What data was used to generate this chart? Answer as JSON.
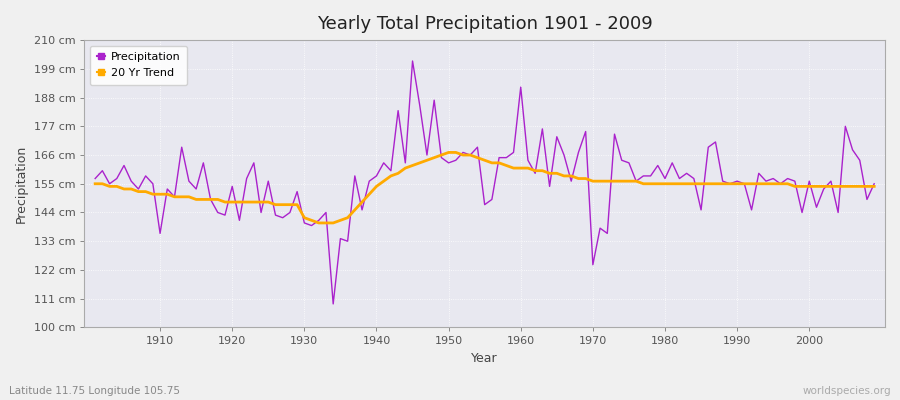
{
  "title": "Yearly Total Precipitation 1901 - 2009",
  "xlabel": "Year",
  "ylabel": "Precipitation",
  "subtitle_left": "Latitude 11.75 Longitude 105.75",
  "subtitle_right": "worldspecies.org",
  "fig_bg_color": "#f0f0f0",
  "plot_bg_color": "#e8e8f0",
  "line_color": "#aa22cc",
  "trend_color": "#ffaa00",
  "ylim": [
    100,
    210
  ],
  "yticks": [
    100,
    111,
    122,
    133,
    144,
    155,
    166,
    177,
    188,
    199,
    210
  ],
  "ytick_labels": [
    "100 cm",
    "111 cm",
    "122 cm",
    "133 cm",
    "144 cm",
    "155 cm",
    "166 cm",
    "177 cm",
    "188 cm",
    "199 cm",
    "210 cm"
  ],
  "xticks": [
    1910,
    1920,
    1930,
    1940,
    1950,
    1960,
    1970,
    1980,
    1990,
    2000
  ],
  "years": [
    1901,
    1902,
    1903,
    1904,
    1905,
    1906,
    1907,
    1908,
    1909,
    1910,
    1911,
    1912,
    1913,
    1914,
    1915,
    1916,
    1917,
    1918,
    1919,
    1920,
    1921,
    1922,
    1923,
    1924,
    1925,
    1926,
    1927,
    1928,
    1929,
    1930,
    1931,
    1932,
    1933,
    1934,
    1935,
    1936,
    1937,
    1938,
    1939,
    1940,
    1941,
    1942,
    1943,
    1944,
    1945,
    1946,
    1947,
    1948,
    1949,
    1950,
    1951,
    1952,
    1953,
    1954,
    1955,
    1956,
    1957,
    1958,
    1959,
    1960,
    1961,
    1962,
    1963,
    1964,
    1965,
    1966,
    1967,
    1968,
    1969,
    1970,
    1971,
    1972,
    1973,
    1974,
    1975,
    1976,
    1977,
    1978,
    1979,
    1980,
    1981,
    1982,
    1983,
    1984,
    1985,
    1986,
    1987,
    1988,
    1989,
    1990,
    1991,
    1992,
    1993,
    1994,
    1995,
    1996,
    1997,
    1998,
    1999,
    2000,
    2001,
    2002,
    2003,
    2004,
    2005,
    2006,
    2007,
    2008,
    2009
  ],
  "precipitation": [
    157,
    160,
    155,
    157,
    162,
    156,
    153,
    158,
    155,
    136,
    153,
    150,
    169,
    156,
    153,
    163,
    149,
    144,
    143,
    154,
    141,
    157,
    163,
    144,
    156,
    143,
    142,
    144,
    152,
    140,
    139,
    141,
    144,
    109,
    134,
    133,
    158,
    145,
    156,
    158,
    163,
    160,
    183,
    163,
    202,
    185,
    166,
    187,
    165,
    163,
    164,
    167,
    166,
    169,
    147,
    149,
    165,
    165,
    167,
    192,
    164,
    159,
    176,
    154,
    173,
    166,
    156,
    167,
    175,
    124,
    138,
    136,
    174,
    164,
    163,
    156,
    158,
    158,
    162,
    157,
    163,
    157,
    159,
    157,
    145,
    169,
    171,
    156,
    155,
    156,
    155,
    145,
    159,
    156,
    157,
    155,
    157,
    156,
    144,
    156,
    146,
    153,
    156,
    144,
    177,
    168,
    164,
    149,
    155
  ],
  "trend": [
    155,
    155,
    154,
    154,
    153,
    153,
    152,
    152,
    151,
    151,
    151,
    150,
    150,
    150,
    149,
    149,
    149,
    149,
    148,
    148,
    148,
    148,
    148,
    148,
    148,
    147,
    147,
    147,
    147,
    142,
    141,
    140,
    140,
    140,
    141,
    142,
    145,
    148,
    151,
    154,
    156,
    158,
    159,
    161,
    162,
    163,
    164,
    165,
    166,
    167,
    167,
    166,
    166,
    165,
    164,
    163,
    163,
    162,
    161,
    161,
    161,
    160,
    160,
    159,
    159,
    158,
    158,
    157,
    157,
    156,
    156,
    156,
    156,
    156,
    156,
    156,
    155,
    155,
    155,
    155,
    155,
    155,
    155,
    155,
    155,
    155,
    155,
    155,
    155,
    155,
    155,
    155,
    155,
    155,
    155,
    155,
    155,
    154,
    154,
    154,
    154,
    154,
    154,
    154,
    154,
    154,
    154,
    154,
    154
  ]
}
